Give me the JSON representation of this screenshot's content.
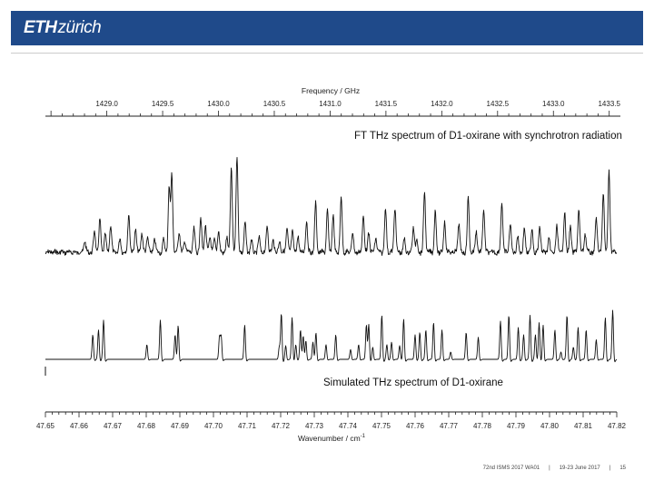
{
  "header": {
    "logo_eth": "ETH",
    "logo_zurich": "zürich"
  },
  "footer": {
    "conference": "72nd ISMS 2017 WA01",
    "separator": "|",
    "dates": "19-23 June 2017",
    "page": "15"
  },
  "colors": {
    "header_bg": "#1f4a8a",
    "trace": "#111111"
  },
  "chart_data": [
    {
      "type": "line",
      "title": "FT THz spectrum of D1-oxirane with synchrotron radiation",
      "xlabel": "Frequency / GHz",
      "xaxis_position": "top",
      "xlim": [
        1428.45,
        1433.6
      ],
      "xticks": [
        "1429.0",
        "1429.5",
        "1430.0",
        "1430.5",
        "1431.0",
        "1431.5",
        "1432.0",
        "1432.5",
        "1433.0",
        "1433.5"
      ],
      "series": [
        {
          "peaks_wavenumber": [
            47.6617,
            47.6646,
            47.6662,
            47.6678,
            47.6694,
            47.6722,
            47.6748,
            47.6768,
            47.6787,
            47.6804,
            47.6825,
            47.6852,
            47.6868,
            47.6876,
            47.6898,
            47.6915,
            47.6942,
            47.6962,
            47.6976,
            47.699,
            47.7003,
            47.7015,
            47.704,
            47.7053,
            47.707,
            47.7094,
            47.7113,
            47.7136,
            47.716,
            47.7178,
            47.7197,
            47.7219,
            47.7235,
            47.7252,
            47.7277,
            47.7304,
            47.7339,
            47.7356,
            47.738,
            47.7414,
            47.7446,
            47.7462,
            47.7483,
            47.7512,
            47.754,
            47.7568,
            47.7595,
            47.7605,
            47.7628,
            47.766,
            47.7688,
            47.773,
            47.7758,
            47.7782,
            47.7804,
            47.7858,
            47.7883,
            47.7905,
            47.7925,
            47.7948,
            47.7971,
            47.7998,
            47.8022,
            47.8045,
            47.8062,
            47.8087,
            47.8106,
            47.8139,
            47.816,
            47.8177
          ],
          "peaks_relative_intensity": [
            0.12,
            0.22,
            0.33,
            0.18,
            0.28,
            0.14,
            0.4,
            0.24,
            0.2,
            0.16,
            0.14,
            0.13,
            0.65,
            0.8,
            0.22,
            0.12,
            0.24,
            0.35,
            0.28,
            0.16,
            0.12,
            0.22,
            0.14,
            0.86,
            1.0,
            0.3,
            0.12,
            0.15,
            0.28,
            0.13,
            0.12,
            0.25,
            0.22,
            0.16,
            0.33,
            0.5,
            0.42,
            0.38,
            0.57,
            0.2,
            0.38,
            0.2,
            0.15,
            0.45,
            0.47,
            0.13,
            0.26,
            0.13,
            0.62,
            0.42,
            0.32,
            0.3,
            0.55,
            0.22,
            0.45,
            0.52,
            0.3,
            0.16,
            0.24,
            0.24,
            0.26,
            0.13,
            0.26,
            0.41,
            0.26,
            0.44,
            0.2,
            0.36,
            0.6,
            0.84
          ]
        }
      ]
    },
    {
      "type": "line",
      "title": "Simulated THz spectrum of D1-oxirane",
      "xlabel": "Wavenumber / cm",
      "xlabel_superscript": "-1",
      "xaxis_position": "bottom",
      "xlim": [
        47.65,
        47.82
      ],
      "xticks": [
        "47.65",
        "47.66",
        "47.67",
        "47.68",
        "47.69",
        "47.70",
        "47.71",
        "47.72",
        "47.73",
        "47.74",
        "47.75",
        "47.76",
        "47.77",
        "47.78",
        "47.79",
        "47.80",
        "47.81",
        "47.82"
      ],
      "series": [
        {
          "peaks_wavenumber": [
            47.6641,
            47.6658,
            47.6673,
            47.6802,
            47.6842,
            47.6886,
            47.6895,
            47.7018,
            47.7023,
            47.7093,
            47.7196,
            47.7202,
            47.7215,
            47.7234,
            47.7245,
            47.7259,
            47.7267,
            47.7275,
            47.7296,
            47.7305,
            47.7335,
            47.7364,
            47.7408,
            47.7432,
            47.7455,
            47.7462,
            47.7474,
            47.7501,
            47.7516,
            47.753,
            47.7554,
            47.7566,
            47.76,
            47.7614,
            47.7632,
            47.7655,
            47.768,
            47.7706,
            47.7752,
            47.7788,
            47.7854,
            47.7879,
            47.7907,
            47.7923,
            47.7942,
            47.7958,
            47.7969,
            47.7981,
            47.8016,
            47.8034,
            47.8052,
            47.8071,
            47.8085,
            47.8109,
            47.8139,
            47.8166,
            47.8188
          ],
          "peaks_relative_intensity": [
            0.5,
            0.6,
            0.8,
            0.3,
            0.8,
            0.5,
            0.7,
            0.45,
            0.5,
            0.7,
            0.25,
            0.95,
            0.28,
            0.85,
            0.3,
            0.6,
            0.5,
            0.4,
            0.35,
            0.55,
            0.3,
            0.5,
            0.2,
            0.3,
            0.7,
            0.75,
            0.25,
            0.9,
            0.3,
            0.35,
            0.28,
            0.82,
            0.5,
            0.55,
            0.6,
            0.75,
            0.6,
            0.15,
            0.55,
            0.45,
            0.78,
            0.9,
            0.65,
            0.5,
            0.9,
            0.5,
            0.75,
            0.7,
            0.6,
            0.15,
            0.9,
            0.25,
            0.65,
            0.6,
            0.4,
            0.85,
            1.0
          ]
        }
      ]
    }
  ]
}
